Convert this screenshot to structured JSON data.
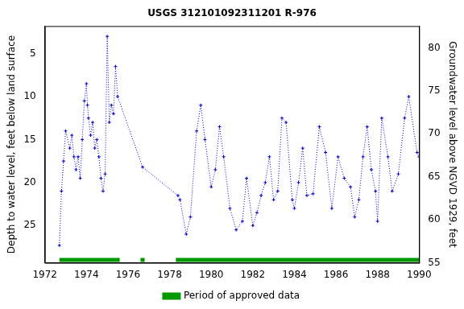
{
  "chart_data": {
    "type": "line",
    "title": "USGS 312101092311201 R-976",
    "y_label": "Depth to water level, feet below land surface",
    "y2_label": "Groundwater level above NGVD 1929, feet",
    "xlim": [
      1972,
      1990
    ],
    "xticks": [
      1972,
      1974,
      1976,
      1978,
      1980,
      1982,
      1984,
      1986,
      1988,
      1990
    ],
    "ylim": [
      29.33,
      1.8
    ],
    "yticks": [
      5,
      10,
      15,
      20,
      25
    ],
    "y2lim": [
      55,
      82.53
    ],
    "y2ticks": [
      55,
      60,
      65,
      70,
      75,
      80
    ],
    "grid": false,
    "legend": "bottom",
    "series": [
      {
        "color": "#0000cc",
        "marker": "cross",
        "line_style": "dotted",
        "x": [
          1972.7,
          1972.8,
          1972.9,
          1973.0,
          1973.2,
          1973.3,
          1973.4,
          1973.5,
          1973.6,
          1973.7,
          1973.8,
          1973.9,
          1974.0,
          1974.05,
          1974.1,
          1974.2,
          1974.3,
          1974.4,
          1974.5,
          1974.6,
          1974.7,
          1974.8,
          1974.9,
          1975.0,
          1975.1,
          1975.2,
          1975.3,
          1975.4,
          1975.5,
          1976.7,
          1978.4,
          1978.5,
          1978.8,
          1979.0,
          1979.3,
          1979.5,
          1979.7,
          1980.0,
          1980.2,
          1980.4,
          1980.6,
          1980.9,
          1981.2,
          1981.5,
          1981.7,
          1982.0,
          1982.2,
          1982.4,
          1982.6,
          1982.8,
          1983.0,
          1983.2,
          1983.4,
          1983.6,
          1983.9,
          1984.0,
          1984.2,
          1984.4,
          1984.6,
          1984.9,
          1985.2,
          1985.5,
          1985.8,
          1986.1,
          1986.4,
          1986.7,
          1986.9,
          1987.1,
          1987.3,
          1987.5,
          1987.7,
          1987.9,
          1988.0,
          1988.2,
          1988.5,
          1988.7,
          1989.0,
          1989.3,
          1989.5,
          1989.9,
          1990.0
        ],
        "values": [
          27.3,
          21.0,
          17.5,
          14.0,
          16.0,
          14.5,
          17.0,
          18.5,
          17.0,
          19.5,
          15.0,
          10.5,
          8.5,
          11.0,
          12.5,
          14.5,
          13.0,
          16.0,
          15.0,
          17.0,
          19.5,
          21.0,
          19.0,
          3.0,
          13.0,
          11.0,
          12.0,
          6.5,
          10.0,
          18.2,
          21.5,
          22.0,
          26.0,
          24.0,
          14.0,
          11.0,
          15.0,
          20.5,
          18.5,
          13.5,
          17.0,
          23.0,
          25.5,
          24.5,
          19.5,
          25.0,
          23.5,
          21.5,
          20.0,
          17.0,
          22.0,
          21.0,
          12.5,
          13.0,
          22.0,
          23.0,
          20.0,
          16.0,
          21.5,
          21.3,
          13.5,
          16.5,
          23.0,
          17.0,
          19.5,
          20.5,
          24.0,
          22.0,
          17.0,
          13.5,
          18.5,
          21.0,
          24.5,
          12.5,
          17.0,
          21.0,
          19.0,
          12.5,
          10.0,
          16.5,
          17.0
        ]
      },
      {
        "name": "Period of approved data",
        "color": "#009900",
        "x": [
          1972.7,
          1975.6,
          1976.1,
          1976.6,
          1976.8,
          1977.5,
          1978.3,
          1990.0
        ],
        "values": [
          29.0,
          29.0,
          null,
          29.0,
          29.0,
          null,
          29.0,
          29.0
        ]
      }
    ]
  }
}
